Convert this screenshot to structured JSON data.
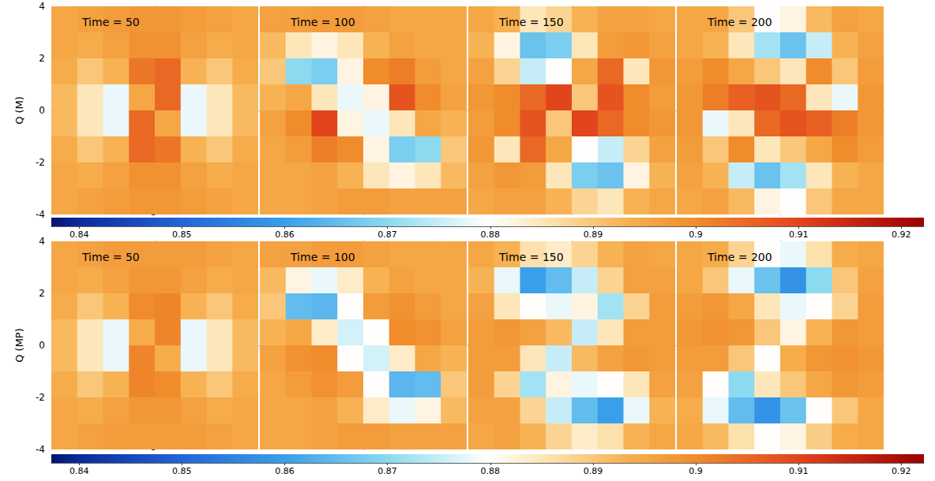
{
  "chart_data": {
    "type": "heatmap",
    "xlim": [
      -4,
      4
    ],
    "ylim": [
      -4,
      4
    ],
    "yticks": [
      -4,
      -2,
      0,
      2,
      4
    ],
    "tick_labels": "y",
    "x": [
      -3.5,
      -2.5,
      -1.5,
      -0.5,
      0.5,
      1.5,
      2.5,
      3.5
    ],
    "y": [
      3.5,
      2.5,
      1.5,
      0.5,
      -0.5,
      -1.5,
      -2.5,
      -3.5
    ],
    "colorbar": {
      "range": [
        0.8373,
        0.9222
      ],
      "ticks": [
        0.84,
        0.85,
        0.86,
        0.87,
        0.88,
        0.89,
        0.9,
        0.91,
        0.92
      ]
    },
    "rows": [
      {
        "ylabel": "Q (M)",
        "panels": [
          {
            "title": "Time = 50",
            "cells": [
              [
                0.895,
                0.896,
                0.897,
                0.898,
                0.898,
                0.897,
                0.896,
                0.895
              ],
              [
                0.895,
                0.894,
                0.896,
                0.899,
                0.899,
                0.896,
                0.894,
                0.895
              ],
              [
                0.894,
                0.89,
                0.893,
                0.903,
                0.905,
                0.893,
                0.89,
                0.894
              ],
              [
                0.892,
                0.885,
                0.878,
                0.895,
                0.905,
                0.878,
                0.885,
                0.892
              ],
              [
                0.892,
                0.885,
                0.878,
                0.905,
                0.895,
                0.878,
                0.885,
                0.892
              ],
              [
                0.894,
                0.89,
                0.893,
                0.905,
                0.903,
                0.893,
                0.89,
                0.894
              ],
              [
                0.895,
                0.894,
                0.896,
                0.899,
                0.899,
                0.896,
                0.894,
                0.895
              ],
              [
                0.895,
                0.896,
                0.897,
                0.898,
                0.898,
                0.897,
                0.896,
                0.895
              ]
            ]
          },
          {
            "title": "Time = 100",
            "cells": [
              [
                0.896,
                0.896,
                0.897,
                0.897,
                0.896,
                0.895,
                0.895,
                0.895
              ],
              [
                0.892,
                0.885,
                0.882,
                0.885,
                0.893,
                0.896,
                0.895,
                0.895
              ],
              [
                0.89,
                0.87,
                0.868,
                0.882,
                0.9,
                0.902,
                0.897,
                0.895
              ],
              [
                0.893,
                0.895,
                0.885,
                0.878,
                0.882,
                0.908,
                0.9,
                0.896
              ],
              [
                0.896,
                0.9,
                0.91,
                0.882,
                0.878,
                0.885,
                0.895,
                0.893
              ],
              [
                0.895,
                0.897,
                0.902,
                0.9,
                0.882,
                0.868,
                0.87,
                0.89
              ],
              [
                0.895,
                0.895,
                0.896,
                0.893,
                0.885,
                0.882,
                0.885,
                0.892
              ],
              [
                0.895,
                0.895,
                0.896,
                0.897,
                0.897,
                0.896,
                0.896,
                0.896
              ]
            ]
          },
          {
            "title": "Time = 150",
            "cells": [
              [
                0.895,
                0.893,
                0.885,
                0.888,
                0.893,
                0.896,
                0.896,
                0.895
              ],
              [
                0.893,
                0.882,
                0.866,
                0.868,
                0.885,
                0.897,
                0.898,
                0.896
              ],
              [
                0.896,
                0.888,
                0.875,
                0.88,
                0.895,
                0.905,
                0.885,
                0.898
              ],
              [
                0.898,
                0.9,
                0.905,
                0.91,
                0.89,
                0.908,
                0.9,
                0.897
              ],
              [
                0.897,
                0.9,
                0.908,
                0.89,
                0.91,
                0.905,
                0.9,
                0.898
              ],
              [
                0.898,
                0.885,
                0.905,
                0.895,
                0.88,
                0.875,
                0.888,
                0.896
              ],
              [
                0.896,
                0.898,
                0.897,
                0.885,
                0.868,
                0.866,
                0.882,
                0.893
              ],
              [
                0.895,
                0.896,
                0.896,
                0.893,
                0.888,
                0.885,
                0.893,
                0.895
              ]
            ]
          },
          {
            "title": "Time = 200",
            "cells": [
              [
                0.895,
                0.895,
                0.89,
                0.88,
                0.882,
                0.892,
                0.896,
                0.895
              ],
              [
                0.895,
                0.893,
                0.885,
                0.872,
                0.866,
                0.875,
                0.893,
                0.896
              ],
              [
                0.897,
                0.9,
                0.895,
                0.89,
                0.885,
                0.9,
                0.89,
                0.897
              ],
              [
                0.898,
                0.902,
                0.906,
                0.908,
                0.905,
                0.885,
                0.878,
                0.898
              ],
              [
                0.898,
                0.878,
                0.885,
                0.905,
                0.908,
                0.906,
                0.902,
                0.898
              ],
              [
                0.897,
                0.89,
                0.9,
                0.885,
                0.89,
                0.895,
                0.9,
                0.897
              ],
              [
                0.896,
                0.893,
                0.875,
                0.866,
                0.872,
                0.885,
                0.893,
                0.895
              ],
              [
                0.895,
                0.896,
                0.892,
                0.882,
                0.88,
                0.89,
                0.895,
                0.895
              ]
            ]
          }
        ]
      },
      {
        "ylabel": "Q (MP)",
        "panels": [
          {
            "title": "Time = 50",
            "cells": [
              [
                0.895,
                0.896,
                0.897,
                0.897,
                0.897,
                0.897,
                0.896,
                0.895
              ],
              [
                0.895,
                0.894,
                0.896,
                0.898,
                0.898,
                0.896,
                0.894,
                0.895
              ],
              [
                0.894,
                0.89,
                0.893,
                0.9,
                0.901,
                0.893,
                0.89,
                0.894
              ],
              [
                0.892,
                0.885,
                0.878,
                0.894,
                0.901,
                0.878,
                0.885,
                0.892
              ],
              [
                0.892,
                0.885,
                0.878,
                0.901,
                0.894,
                0.878,
                0.885,
                0.892
              ],
              [
                0.894,
                0.89,
                0.893,
                0.901,
                0.9,
                0.893,
                0.89,
                0.894
              ],
              [
                0.895,
                0.894,
                0.896,
                0.898,
                0.898,
                0.896,
                0.894,
                0.895
              ],
              [
                0.895,
                0.896,
                0.897,
                0.897,
                0.897,
                0.897,
                0.896,
                0.895
              ]
            ]
          },
          {
            "title": "Time = 100",
            "cells": [
              [
                0.896,
                0.896,
                0.897,
                0.897,
                0.896,
                0.895,
                0.895,
                0.895
              ],
              [
                0.892,
                0.882,
                0.878,
                0.884,
                0.893,
                0.896,
                0.895,
                0.895
              ],
              [
                0.89,
                0.865,
                0.864,
                0.88,
                0.897,
                0.899,
                0.897,
                0.895
              ],
              [
                0.893,
                0.895,
                0.884,
                0.876,
                0.88,
                0.9,
                0.899,
                0.896
              ],
              [
                0.896,
                0.899,
                0.9,
                0.88,
                0.876,
                0.884,
                0.895,
                0.893
              ],
              [
                0.895,
                0.897,
                0.899,
                0.897,
                0.88,
                0.864,
                0.865,
                0.89
              ],
              [
                0.895,
                0.895,
                0.896,
                0.893,
                0.884,
                0.878,
                0.882,
                0.892
              ],
              [
                0.895,
                0.895,
                0.896,
                0.897,
                0.897,
                0.896,
                0.896,
                0.896
              ]
            ]
          },
          {
            "title": "Time = 150",
            "cells": [
              [
                0.895,
                0.893,
                0.886,
                0.884,
                0.888,
                0.893,
                0.896,
                0.895
              ],
              [
                0.893,
                0.878,
                0.86,
                0.865,
                0.875,
                0.888,
                0.896,
                0.896
              ],
              [
                0.896,
                0.885,
                0.88,
                0.878,
                0.882,
                0.872,
                0.888,
                0.897
              ],
              [
                0.897,
                0.898,
                0.896,
                0.892,
                0.875,
                0.885,
                0.897,
                0.897
              ],
              [
                0.897,
                0.897,
                0.885,
                0.875,
                0.892,
                0.896,
                0.898,
                0.897
              ],
              [
                0.897,
                0.888,
                0.872,
                0.882,
                0.878,
                0.88,
                0.885,
                0.896
              ],
              [
                0.896,
                0.896,
                0.888,
                0.875,
                0.865,
                0.86,
                0.878,
                0.893
              ],
              [
                0.895,
                0.896,
                0.893,
                0.888,
                0.884,
                0.886,
                0.893,
                0.895
              ]
            ]
          },
          {
            "title": "Time = 200",
            "cells": [
              [
                0.895,
                0.894,
                0.888,
                0.88,
                0.878,
                0.886,
                0.894,
                0.895
              ],
              [
                0.895,
                0.89,
                0.878,
                0.866,
                0.858,
                0.87,
                0.89,
                0.896
              ],
              [
                0.897,
                0.898,
                0.895,
                0.885,
                0.878,
                0.88,
                0.888,
                0.897
              ],
              [
                0.898,
                0.899,
                0.898,
                0.89,
                0.882,
                0.893,
                0.898,
                0.897
              ],
              [
                0.897,
                0.897,
                0.89,
                0.88,
                0.894,
                0.898,
                0.899,
                0.898
              ],
              [
                0.896,
                0.88,
                0.87,
                0.885,
                0.89,
                0.895,
                0.898,
                0.897
              ],
              [
                0.894,
                0.878,
                0.865,
                0.858,
                0.866,
                0.88,
                0.89,
                0.895
              ],
              [
                0.895,
                0.892,
                0.886,
                0.88,
                0.882,
                0.889,
                0.894,
                0.895
              ]
            ]
          }
        ]
      }
    ]
  }
}
